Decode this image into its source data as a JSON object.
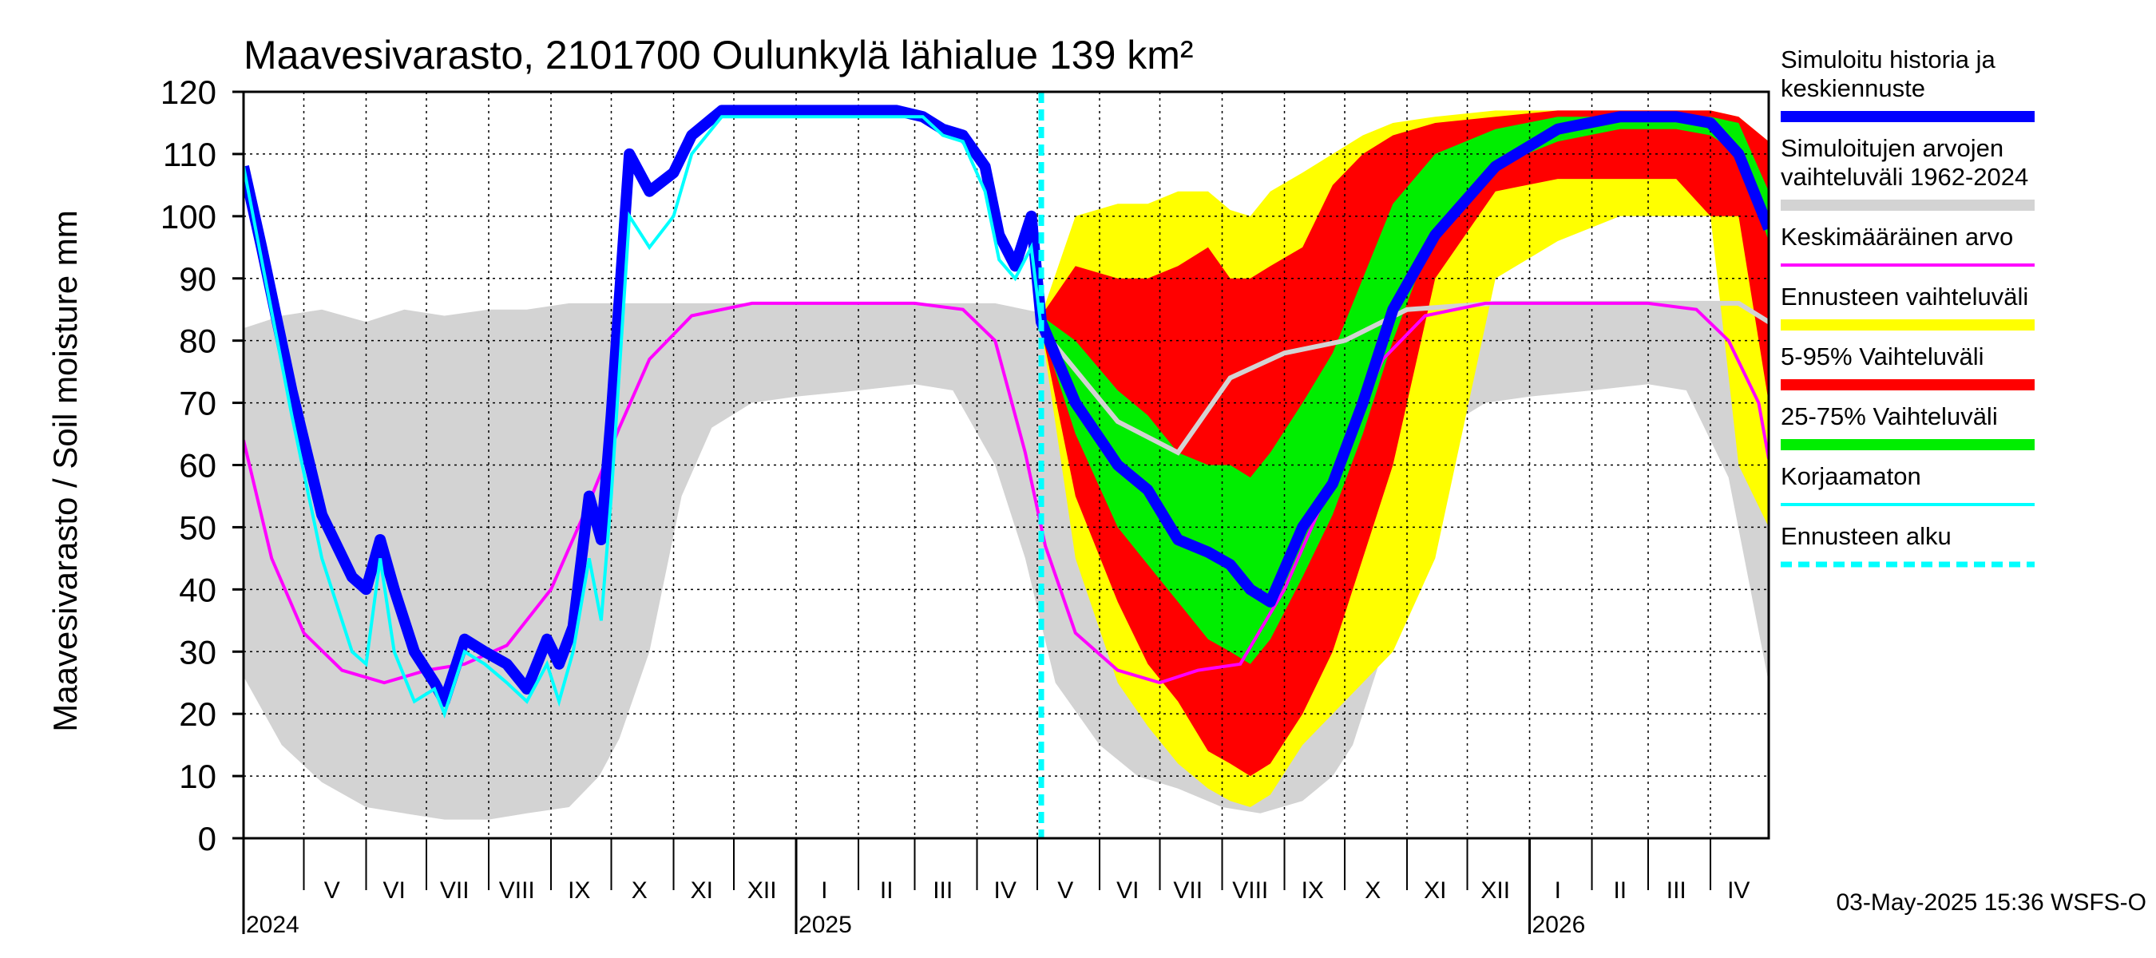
{
  "chart_data": {
    "type": "area",
    "title": "Maavesivarasto, 2101700 Oulunkylä lähialue 139 km²",
    "ylabel": "Maavesivarasto / Soil moisture   mm",
    "ylim": [
      0,
      120
    ],
    "yticks": [
      "0",
      "10",
      "20",
      "30",
      "40",
      "50",
      "60",
      "70",
      "80",
      "90",
      "100",
      "110",
      "120"
    ],
    "x_start": "2024-04-01",
    "x_end": "2026-04-30",
    "forecast_start": "2025-05-03",
    "months": [
      {
        "label": "V",
        "date": "2024-05-15"
      },
      {
        "label": "VI",
        "date": "2024-06-15"
      },
      {
        "label": "VII",
        "date": "2024-07-15"
      },
      {
        "label": "VIII",
        "date": "2024-08-15"
      },
      {
        "label": "IX",
        "date": "2024-09-15"
      },
      {
        "label": "X",
        "date": "2024-10-15"
      },
      {
        "label": "XI",
        "date": "2024-11-15"
      },
      {
        "label": "XII",
        "date": "2024-12-15"
      },
      {
        "label": "I",
        "date": "2025-01-15"
      },
      {
        "label": "II",
        "date": "2025-02-15"
      },
      {
        "label": "III",
        "date": "2025-03-15"
      },
      {
        "label": "IV",
        "date": "2025-04-15"
      },
      {
        "label": "V",
        "date": "2025-05-15"
      },
      {
        "label": "VI",
        "date": "2025-06-15"
      },
      {
        "label": "VII",
        "date": "2025-07-15"
      },
      {
        "label": "VIII",
        "date": "2025-08-15"
      },
      {
        "label": "IX",
        "date": "2025-09-15"
      },
      {
        "label": "X",
        "date": "2025-10-15"
      },
      {
        "label": "XI",
        "date": "2025-11-15"
      },
      {
        "label": "XII",
        "date": "2025-12-15"
      },
      {
        "label": "I",
        "date": "2026-01-15"
      },
      {
        "label": "II",
        "date": "2026-02-15"
      },
      {
        "label": "III",
        "date": "2026-03-15"
      },
      {
        "label": "IV",
        "date": "2026-04-15"
      }
    ],
    "years": [
      {
        "label": "2024",
        "date": "2024-04-01"
      },
      {
        "label": "2025",
        "date": "2025-01-01"
      },
      {
        "label": "2026",
        "date": "2026-01-01"
      }
    ],
    "timestamp": "03-May-2025 15:36 WSFS-O",
    "legend": [
      {
        "key": "sim",
        "label": [
          "Simuloitu historia ja",
          "keskiennuste"
        ],
        "color": "#0000ff",
        "style": "line-thick"
      },
      {
        "key": "range",
        "label": [
          "Simuloitujen arvojen",
          "vaihteluväli 1962-2024"
        ],
        "color": "#d3d3d3",
        "style": "band"
      },
      {
        "key": "mean",
        "label": [
          "Keskimääräinen arvo"
        ],
        "color": "#ff00ff",
        "style": "line"
      },
      {
        "key": "fc_range",
        "label": [
          "Ennusteen vaihteluväli"
        ],
        "color": "#ffff00",
        "style": "band"
      },
      {
        "key": "p5_95",
        "label": [
          "5-95% Vaihteluväli"
        ],
        "color": "#ff0000",
        "style": "band"
      },
      {
        "key": "p25_75",
        "label": [
          "25-75% Vaihteluväli"
        ],
        "color": "#00ee00",
        "style": "band"
      },
      {
        "key": "uncorr",
        "label": [
          "Korjaamaton"
        ],
        "color": "#00ffff",
        "style": "line"
      },
      {
        "key": "fc_start",
        "label": [
          "Ennusteen alku"
        ],
        "color": "#00ffff",
        "style": "dashed"
      }
    ],
    "historical_range": {
      "dates": [
        "2024-04-01",
        "2024-04-20",
        "2024-05-10",
        "2024-06-01",
        "2024-06-20",
        "2024-07-10",
        "2024-08-01",
        "2024-08-20",
        "2024-09-10",
        "2024-09-25",
        "2024-10-05",
        "2024-10-20",
        "2024-11-05",
        "2024-11-20",
        "2024-12-10",
        "2025-01-01",
        "2025-02-01",
        "2025-03-01",
        "2025-03-20",
        "2025-04-10",
        "2025-04-25",
        "2025-05-10",
        "2025-06-01",
        "2025-06-20",
        "2025-07-10",
        "2025-08-01",
        "2025-08-20",
        "2025-09-10",
        "2025-09-25",
        "2025-10-05",
        "2025-10-20",
        "2025-11-05",
        "2025-11-20",
        "2025-12-10",
        "2026-01-01",
        "2026-02-01",
        "2026-03-01",
        "2026-03-20",
        "2026-04-10",
        "2026-04-30"
      ],
      "min": [
        26,
        15,
        9,
        5,
        4,
        3,
        3,
        4,
        5,
        10,
        16,
        30,
        55,
        66,
        70,
        71,
        72,
        73,
        72,
        60,
        45,
        25,
        15,
        10,
        8,
        5,
        4,
        6,
        10,
        15,
        30,
        55,
        66,
        70,
        71,
        72,
        73,
        72,
        58,
        25
      ],
      "max": [
        82,
        84,
        85,
        83,
        85,
        84,
        85,
        85,
        86,
        86,
        86,
        86,
        86,
        86,
        86,
        86,
        86,
        86,
        86,
        86,
        85,
        84,
        85,
        83,
        85,
        84,
        85,
        85,
        86,
        86,
        86,
        86,
        86,
        86,
        86,
        86,
        86,
        86,
        86,
        86
      ]
    },
    "mean": {
      "dates": [
        "2024-04-01",
        "2024-04-15",
        "2024-05-01",
        "2024-05-20",
        "2024-06-10",
        "2024-07-01",
        "2024-07-20",
        "2024-08-10",
        "2024-09-01",
        "2024-09-20",
        "2024-10-05",
        "2024-10-20",
        "2024-11-10",
        "2024-12-10",
        "2025-01-15",
        "2025-03-01",
        "2025-03-25",
        "2025-04-10",
        "2025-04-25",
        "2025-05-05",
        "2025-05-20",
        "2025-06-10",
        "2025-07-01",
        "2025-07-20",
        "2025-08-10",
        "2025-09-01",
        "2025-09-20",
        "2025-10-05",
        "2025-10-20",
        "2025-11-10",
        "2025-12-10",
        "2026-01-15",
        "2026-03-01",
        "2026-03-25",
        "2026-04-10",
        "2026-04-25",
        "2026-04-30"
      ],
      "values": [
        64,
        45,
        33,
        27,
        25,
        27,
        28,
        31,
        40,
        54,
        66,
        77,
        84,
        86,
        86,
        86,
        85,
        80,
        62,
        47,
        33,
        27,
        25,
        27,
        28,
        40,
        54,
        66,
        77,
        84,
        86,
        86,
        86,
        85,
        80,
        70,
        61
      ]
    },
    "simulated": {
      "dates": [
        "2024-04-01",
        "2024-04-10",
        "2024-04-25",
        "2024-05-10",
        "2024-05-25",
        "2024-06-01",
        "2024-06-08",
        "2024-06-15",
        "2024-06-25",
        "2024-07-05",
        "2024-07-10",
        "2024-07-20",
        "2024-07-30",
        "2024-08-10",
        "2024-08-20",
        "2024-08-30",
        "2024-09-05",
        "2024-09-12",
        "2024-09-20",
        "2024-09-26",
        "2024-10-01",
        "2024-10-10",
        "2024-10-20",
        "2024-11-01",
        "2024-11-10",
        "2024-11-25",
        "2024-12-20",
        "2025-01-20",
        "2025-02-20",
        "2025-03-05",
        "2025-03-15",
        "2025-03-25",
        "2025-04-05",
        "2025-04-12",
        "2025-04-20",
        "2025-04-28",
        "2025-05-03",
        "2025-05-20",
        "2025-06-10",
        "2025-06-25",
        "2025-07-10",
        "2025-07-25",
        "2025-08-05",
        "2025-08-15",
        "2025-08-25",
        "2025-09-10",
        "2025-09-25",
        "2025-10-10",
        "2025-10-25",
        "2025-11-15",
        "2025-12-15",
        "2026-01-15",
        "2026-02-15",
        "2026-03-15",
        "2026-04-01",
        "2026-04-15",
        "2026-04-30"
      ],
      "values": [
        108,
        95,
        72,
        52,
        42,
        40,
        48,
        40,
        30,
        25,
        22,
        32,
        30,
        28,
        24,
        32,
        28,
        34,
        55,
        48,
        68,
        110,
        104,
        107,
        113,
        117,
        117,
        117,
        117,
        116,
        114,
        113,
        108,
        97,
        92,
        100,
        83,
        70,
        60,
        56,
        48,
        46,
        44,
        40,
        38,
        50,
        57,
        70,
        85,
        97,
        108,
        114,
        116,
        116,
        115,
        110,
        98
      ]
    },
    "uncorrected": {
      "dates": [
        "2024-04-01",
        "2024-04-10",
        "2024-04-25",
        "2024-05-10",
        "2024-05-25",
        "2024-06-01",
        "2024-06-08",
        "2024-06-15",
        "2024-06-25",
        "2024-07-05",
        "2024-07-10",
        "2024-07-20",
        "2024-07-30",
        "2024-08-10",
        "2024-08-20",
        "2024-08-30",
        "2024-09-05",
        "2024-09-12",
        "2024-09-20",
        "2024-09-26",
        "2024-10-01",
        "2024-10-10",
        "2024-10-20",
        "2024-11-01",
        "2024-11-10",
        "2024-11-25",
        "2024-12-20",
        "2025-01-20",
        "2025-02-20",
        "2025-03-05",
        "2025-03-15",
        "2025-03-25",
        "2025-04-05",
        "2025-04-12",
        "2025-04-20",
        "2025-04-28",
        "2025-05-03"
      ],
      "values": [
        108,
        93,
        68,
        45,
        30,
        28,
        45,
        30,
        22,
        24,
        20,
        30,
        28,
        25,
        22,
        28,
        22,
        30,
        45,
        35,
        55,
        100,
        95,
        100,
        110,
        116,
        116,
        116,
        116,
        116,
        113,
        112,
        104,
        93,
        90,
        95,
        82
      ]
    },
    "forecast_bands": {
      "dates": [
        "2025-05-03",
        "2025-05-20",
        "2025-06-10",
        "2025-06-25",
        "2025-07-10",
        "2025-07-25",
        "2025-08-05",
        "2025-08-15",
        "2025-08-25",
        "2025-09-10",
        "2025-09-25",
        "2025-10-10",
        "2025-10-25",
        "2025-11-15",
        "2025-12-15",
        "2026-01-15",
        "2026-02-15",
        "2026-03-15",
        "2026-04-01",
        "2026-04-15",
        "2026-04-30"
      ],
      "yellow_min": [
        82,
        45,
        25,
        18,
        12,
        8,
        6,
        5,
        7,
        15,
        20,
        25,
        30,
        45,
        90,
        96,
        100,
        100,
        100,
        60,
        50
      ],
      "yellow_max": [
        84,
        100,
        102,
        102,
        104,
        104,
        101,
        100,
        104,
        107,
        110,
        113,
        115,
        116,
        117,
        117,
        117,
        117,
        117,
        116,
        112
      ],
      "red_min": [
        82,
        55,
        38,
        28,
        22,
        14,
        12,
        10,
        12,
        20,
        30,
        45,
        60,
        90,
        104,
        106,
        106,
        106,
        100,
        100,
        70
      ],
      "red_max": [
        84,
        92,
        90,
        90,
        92,
        95,
        90,
        90,
        92,
        95,
        105,
        110,
        113,
        115,
        116,
        117,
        117,
        117,
        117,
        116,
        112
      ],
      "green_min": [
        82,
        65,
        50,
        44,
        38,
        32,
        30,
        28,
        32,
        42,
        52,
        65,
        80,
        98,
        108,
        112,
        114,
        114,
        113,
        110,
        96
      ],
      "green_max": [
        84,
        80,
        72,
        68,
        62,
        60,
        60,
        58,
        62,
        70,
        78,
        90,
        102,
        110,
        114,
        116,
        116,
        116,
        116,
        115,
        104
      ]
    },
    "sim_history_range": {
      "dates": [
        "2025-05-03",
        "2025-06-10",
        "2025-07-10",
        "2025-08-05",
        "2025-09-01",
        "2025-10-01",
        "2025-11-01",
        "2025-12-15",
        "2026-01-15",
        "2026-03-15",
        "2026-04-15",
        "2026-04-30"
      ],
      "values": [
        82,
        67,
        62,
        74,
        78,
        80,
        85,
        86,
        86,
        86,
        86,
        83
      ]
    }
  }
}
